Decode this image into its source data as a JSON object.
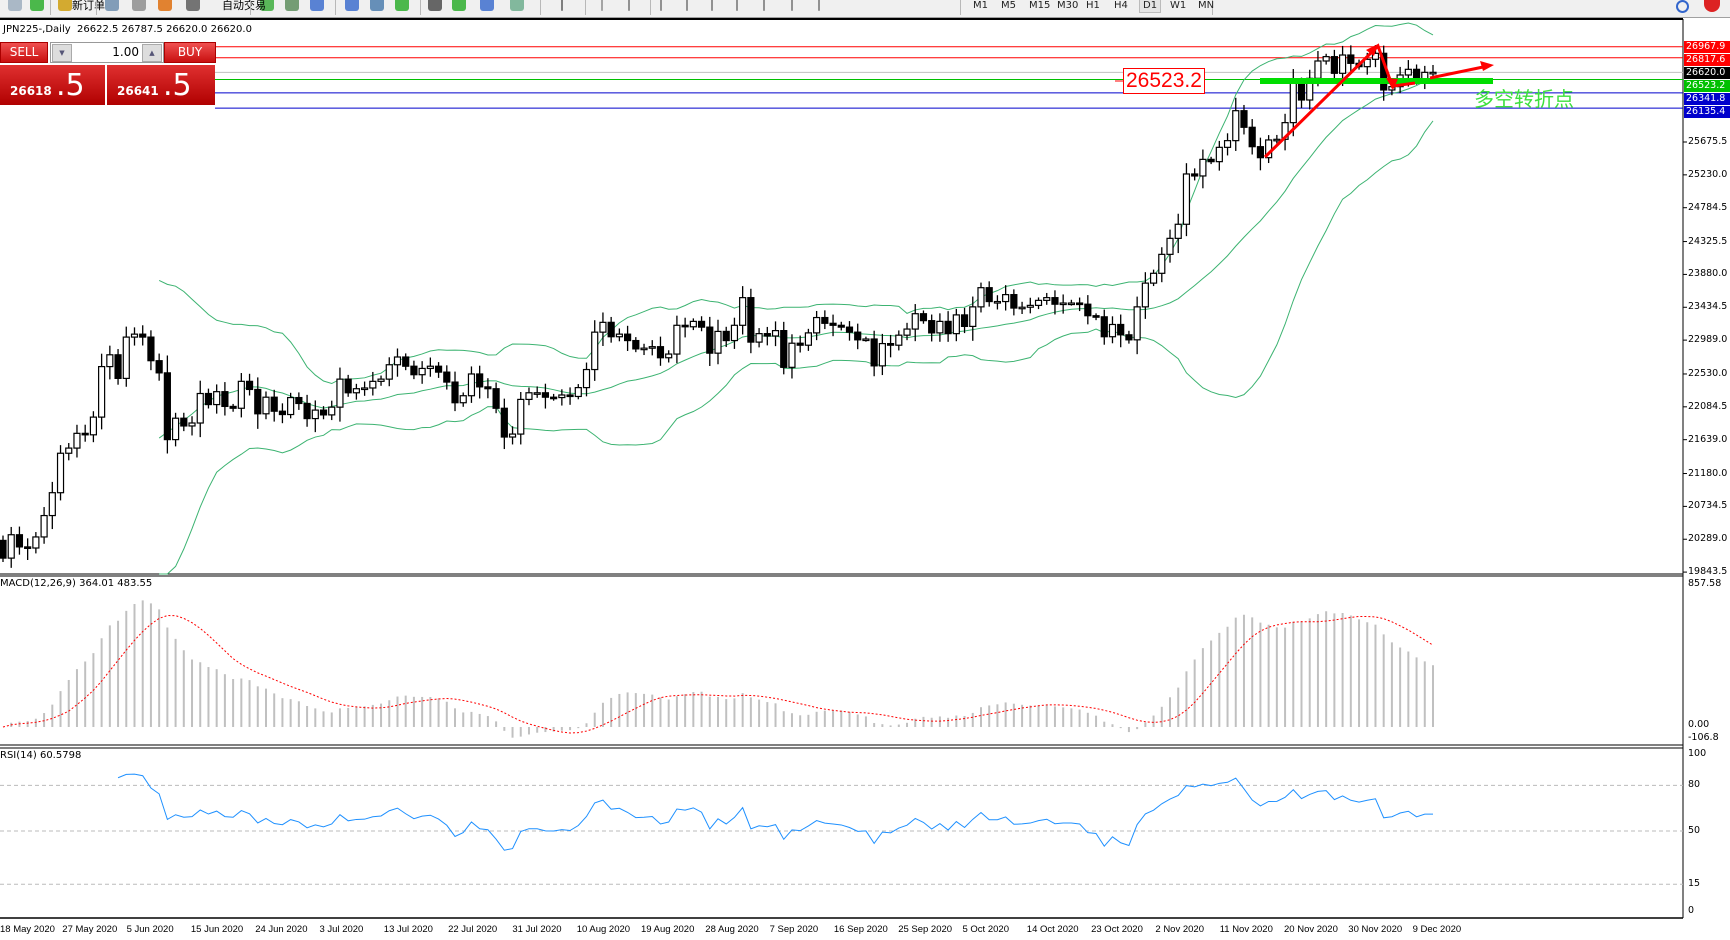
{
  "toolbar": {
    "new_order_label": "新订单",
    "auto_trading_label": "自动交易",
    "timeframes": [
      "M1",
      "M5",
      "M15",
      "M30",
      "H1",
      "H4",
      "D1",
      "W1",
      "MN"
    ],
    "active_timeframe": "D1",
    "icons": [
      "print-preview-icon",
      "new-order-icon",
      "market-watch-icon",
      "navigator-icon",
      "signal-icon",
      "auto-trading-icon",
      "bar-chart-icon",
      "candlestick-icon",
      "line-chart-icon",
      "zoom-in-icon",
      "zoom-out-icon",
      "tile-windows-icon",
      "autoscroll-icon",
      "chart-shift-icon",
      "indicators-icon",
      "periods-icon",
      "templates-icon",
      "cursor-icon",
      "crosshair-icon",
      "vertical-line-icon",
      "horizontal-line-icon",
      "trendline-icon",
      "equidistant-channel-icon",
      "fibonacci-icon",
      "text-icon",
      "text-label-icon",
      "arrows-icon",
      "search-icon",
      "notification-icon"
    ]
  },
  "chart_header": {
    "symbol": "JPN225-,Daily",
    "ohlc": "26622.5 26787.5 26620.0 26620.0"
  },
  "trade_panel": {
    "sell_label": "SELL",
    "buy_label": "BUY",
    "lot": "1.00",
    "sell_price_main": "26618",
    "sell_price_frac": ".5",
    "buy_price_main": "26641",
    "buy_price_frac": ".5"
  },
  "annotations": {
    "level_box": "26523.2",
    "note": "多空转折点"
  },
  "colors": {
    "bollinger": "#3cb371",
    "resistance": "#ff0000",
    "support": "#0000cc",
    "pivot": "#00dd00",
    "bid": "#c0c0c0",
    "macd_hist": "#c0c0c0",
    "macd_signal": "#ff0000",
    "rsi": "#1e90ff",
    "arrow": "#ff0000"
  },
  "chart_data": {
    "type": "candlestick",
    "symbol": "JPN225-",
    "timeframe": "Daily",
    "ylim": [
      19843.5,
      27400
    ],
    "y_ticks": [
      "25675.5",
      "25230.0",
      "24784.5",
      "24325.5",
      "23880.0",
      "23434.5",
      "22989.0",
      "22530.0",
      "22084.5",
      "21639.0",
      "21180.0",
      "20734.5",
      "20289.0",
      "19843.5"
    ],
    "x_labels": [
      "18 May 2020",
      "27 May 2020",
      "5 Jun 2020",
      "15 Jun 2020",
      "24 Jun 2020",
      "3 Jul 2020",
      "13 Jul 2020",
      "22 Jul 2020",
      "31 Jul 2020",
      "10 Aug 2020",
      "19 Aug 2020",
      "28 Aug 2020",
      "7 Sep 2020",
      "16 Sep 2020",
      "25 Sep 2020",
      "5 Oct 2020",
      "14 Oct 2020",
      "23 Oct 2020",
      "2 Nov 2020",
      "11 Nov 2020",
      "20 Nov 2020",
      "30 Nov 2020",
      "9 Dec 2020"
    ],
    "close": [
      20033,
      20350,
      20185,
      20170,
      20320,
      20610,
      20920,
      21455,
      21525,
      21725,
      21705,
      21945,
      22630,
      22790,
      22470,
      23030,
      23070,
      23030,
      22710,
      22545,
      21640,
      21930,
      21825,
      21865,
      22265,
      22115,
      22290,
      22090,
      22065,
      22430,
      22320,
      21990,
      22215,
      22025,
      21980,
      22210,
      22130,
      21925,
      22040,
      21975,
      22080,
      22460,
      22275,
      22330,
      22340,
      22430,
      22460,
      22655,
      22760,
      22635,
      22520,
      22605,
      22635,
      22555,
      22420,
      22140,
      22235,
      22530,
      22355,
      22330,
      22065,
      21675,
      21715,
      22185,
      22275,
      22275,
      22215,
      22210,
      22245,
      22225,
      22345,
      22590,
      23097,
      23230,
      23035,
      23070,
      22983,
      22870,
      22880,
      22900,
      22750,
      22800,
      23190,
      23170,
      23243,
      23165,
      22812,
      23107,
      22983,
      23190,
      23565,
      22962,
      23077,
      23045,
      23118,
      22620,
      22947,
      22920,
      23087,
      23295,
      23217,
      23190,
      23165,
      23097,
      22993,
      23004,
      22640,
      22942,
      22920,
      23056,
      23139,
      23347,
      23253,
      23087,
      23243,
      23077,
      23331,
      23175,
      23440,
      23700,
      23512,
      23512,
      23606,
      23424,
      23435,
      23460,
      23528,
      23565,
      23476,
      23492,
      23492,
      23476,
      23320,
      23305,
      23035,
      23201,
      23061,
      22993,
      23440,
      23762,
      23895,
      24152,
      24369,
      24560,
      25242,
      25215,
      25440,
      25409,
      25603,
      25694,
      26100,
      25875,
      25612,
      25463,
      25703,
      25712,
      25938,
      26471,
      26245,
      26539,
      26774,
      26833,
      26607,
      26855,
      26742,
      26697,
      26797,
      26878,
      26381,
      26426,
      26584,
      26661,
      26516,
      26620,
      26620
    ],
    "horizontal_levels": [
      {
        "price": 26967.9,
        "label": "26967.9",
        "color": "#ff0000"
      },
      {
        "price": 26817.6,
        "label": "26817.6",
        "color": "#ff0000"
      },
      {
        "price": 26620.0,
        "label": "26620.0",
        "color": "#c0c0c0"
      },
      {
        "price": 26523.2,
        "label": "26523.2",
        "color": "#00c000"
      },
      {
        "price": 26341.8,
        "label": "26341.8",
        "color": "#0000cc"
      },
      {
        "price": 26135.4,
        "label": "26135.4",
        "color": "#0000cc"
      }
    ],
    "overlays": "Bollinger Bands",
    "macd": {
      "label": "MACD(12,26,9) 364.01 483.55",
      "ticks": [
        "857.58",
        "0.00",
        "-106.8"
      ],
      "ylim": [
        -106.8,
        857.58
      ]
    },
    "rsi": {
      "label": "RSI(14) 60.5798",
      "ticks": [
        "100",
        "80",
        "50",
        "15",
        "0"
      ],
      "levels": [
        80,
        50,
        15
      ],
      "ylim": [
        0,
        100
      ]
    }
  }
}
